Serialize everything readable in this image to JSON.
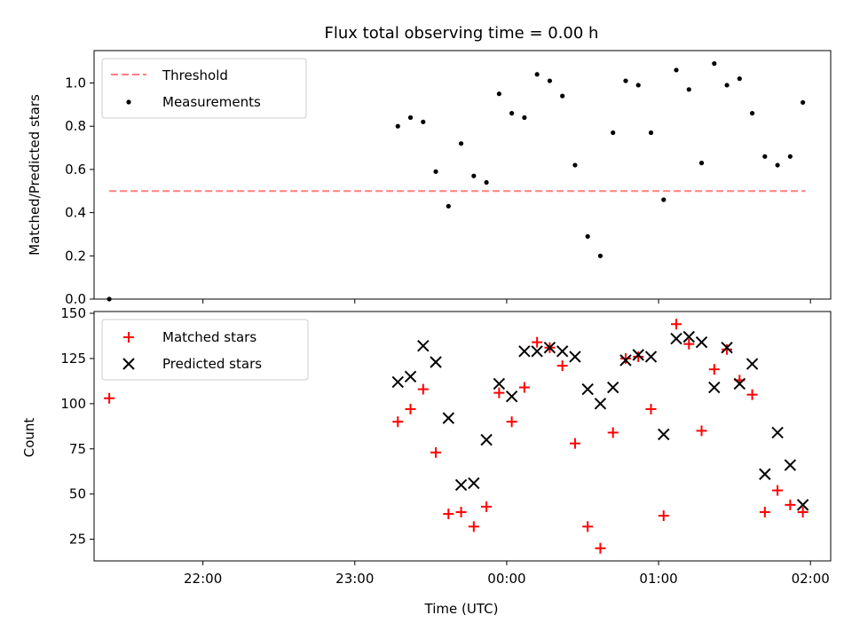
{
  "chart_data": [
    {
      "type": "scatter",
      "title": "Flux total observing time = 0.00 h",
      "xlabel": "",
      "ylabel": "Matched/Predicted stars",
      "x_axis_type": "time",
      "xlim": [
        "21:17",
        "02:08"
      ],
      "ylim": [
        0,
        1.15
      ],
      "yticks": [
        0.0,
        0.2,
        0.4,
        0.6,
        0.8,
        1.0
      ],
      "ytick_labels": [
        "0.0",
        "0.2",
        "0.4",
        "0.6",
        "0.8",
        "1.0"
      ],
      "grid": false,
      "legend_position": "upper-left",
      "series": [
        {
          "name": "Threshold",
          "style": "dashed-line",
          "color": "#ff7f7f",
          "x": [
            "21:23",
            "01:58"
          ],
          "y": [
            0.5,
            0.5
          ]
        },
        {
          "name": "Measurements",
          "style": "dot",
          "color": "#000000",
          "x": [
            "21:23",
            "23:17",
            "23:22",
            "23:27",
            "23:32",
            "23:37",
            "23:42",
            "23:47",
            "23:52",
            "23:57",
            "00:02",
            "00:07",
            "00:12",
            "00:17",
            "00:22",
            "00:27",
            "00:32",
            "00:37",
            "00:42",
            "00:47",
            "00:52",
            "00:57",
            "01:02",
            "01:07",
            "01:12",
            "01:17",
            "01:22",
            "01:27",
            "01:32",
            "01:37",
            "01:42",
            "01:47",
            "01:52",
            "01:57"
          ],
          "y": [
            0.0,
            0.8,
            0.84,
            0.82,
            0.59,
            0.43,
            0.72,
            0.57,
            0.54,
            0.95,
            0.86,
            0.84,
            1.04,
            1.01,
            0.94,
            0.62,
            0.29,
            0.2,
            0.77,
            1.01,
            0.99,
            0.77,
            0.46,
            1.06,
            0.97,
            0.63,
            1.09,
            0.99,
            1.02,
            0.86,
            0.66,
            0.62,
            0.66,
            0.91
          ]
        }
      ]
    },
    {
      "type": "scatter",
      "title": "",
      "xlabel": "Time (UTC)",
      "ylabel": "Count",
      "x_axis_type": "time",
      "xlim": [
        "21:17",
        "02:08"
      ],
      "ylim": [
        13,
        151
      ],
      "yticks": [
        25,
        50,
        75,
        100,
        125,
        150
      ],
      "ytick_labels": [
        "25",
        "50",
        "75",
        "100",
        "125",
        "150"
      ],
      "xticks": [
        "22:00",
        "23:00",
        "00:00",
        "01:00",
        "02:00"
      ],
      "xtick_labels": [
        "22:00",
        "23:00",
        "00:00",
        "01:00",
        "02:00"
      ],
      "grid": false,
      "legend_position": "upper-left",
      "series": [
        {
          "name": "Matched stars",
          "marker": "plus",
          "color": "#ff0000",
          "x": [
            "21:23",
            "23:17",
            "23:22",
            "23:27",
            "23:32",
            "23:37",
            "23:42",
            "23:47",
            "23:52",
            "23:57",
            "00:02",
            "00:07",
            "00:12",
            "00:17",
            "00:22",
            "00:27",
            "00:32",
            "00:37",
            "00:42",
            "00:47",
            "00:52",
            "00:57",
            "01:02",
            "01:07",
            "01:12",
            "01:17",
            "01:22",
            "01:27",
            "01:32",
            "01:37",
            "01:42",
            "01:47",
            "01:52",
            "01:57"
          ],
          "y": [
            103,
            90,
            97,
            108,
            73,
            39,
            40,
            32,
            43,
            106,
            90,
            109,
            134,
            131,
            121,
            78,
            32,
            20,
            84,
            125,
            126,
            97,
            38,
            144,
            133,
            85,
            119,
            130,
            113,
            105,
            40,
            52,
            44,
            40
          ]
        },
        {
          "name": "Predicted stars",
          "marker": "x",
          "color": "#000000",
          "x": [
            "23:17",
            "23:22",
            "23:27",
            "23:32",
            "23:37",
            "23:42",
            "23:47",
            "23:52",
            "23:57",
            "00:02",
            "00:07",
            "00:12",
            "00:17",
            "00:22",
            "00:27",
            "00:32",
            "00:37",
            "00:42",
            "00:47",
            "00:52",
            "00:57",
            "01:02",
            "01:07",
            "01:12",
            "01:17",
            "01:22",
            "01:27",
            "01:32",
            "01:37",
            "01:42",
            "01:47",
            "01:52",
            "01:57"
          ],
          "y": [
            112,
            115,
            132,
            123,
            92,
            55,
            56,
            80,
            111,
            104,
            129,
            129,
            131,
            129,
            126,
            108,
            100,
            109,
            124,
            127,
            126,
            83,
            136,
            137,
            134,
            109,
            131,
            111,
            122,
            61,
            84,
            66,
            44
          ]
        }
      ]
    }
  ]
}
